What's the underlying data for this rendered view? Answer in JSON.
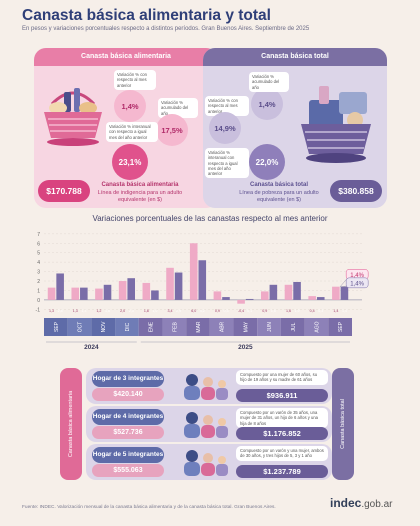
{
  "header": {
    "title": "Canasta básica alimentaria y total",
    "subtitle": "En pesos y variaciones porcentuales respecto a distintos períodos. Gran Buenos Aires. Septiembre de 2025"
  },
  "cba_panel": {
    "heading": "Canasta básica alimentaria",
    "var_monthly_label": "Variación % con respecto al mes anterior",
    "var_monthly": "1,4%",
    "var_yoy_label": "Variación % acumulado del año",
    "var_yoy": "17,5%",
    "var_interannual_label": "Variación % interanual con respecto a igual mes del año anterior",
    "var_interannual": "23,1%",
    "value": "$170.788",
    "line_title": "Canasta básica alimentaria",
    "line_sub": "Línea de indigencia para un adulto equivalente (en $)"
  },
  "cbt_panel": {
    "heading": "Canasta básica total",
    "var_monthly_label": "Variación % con respecto al mes anterior",
    "var_monthly": "1,4%",
    "var_yoy_label": "Variación % acumulado del año",
    "var_yoy": "14,9%",
    "var_interannual_label": "Variación % interanual con respecto a igual mes del año anterior",
    "var_interannual": "22,0%",
    "value": "$380.858",
    "line_title": "Canasta básica total",
    "line_sub": "Línea de pobreza para un adulto equivalente (en $)"
  },
  "chart_data": {
    "type": "bar",
    "title": "Variaciones porcentuales de las canastas respecto al mes anterior",
    "categories": [
      "SEP",
      "OCT",
      "NOV",
      "DIC",
      "ENE",
      "FEB",
      "MAR",
      "ABR",
      "MAY",
      "JUN",
      "JUL",
      "AGO",
      "SEP"
    ],
    "year_groups": [
      {
        "label": "2024",
        "count": 4
      },
      {
        "label": "2025",
        "count": 9
      }
    ],
    "series": [
      {
        "name": "Canasta básica alimentaria",
        "color": "#efaac6",
        "values": [
          1.3,
          1.3,
          1.2,
          2.0,
          1.8,
          3.4,
          6.0,
          0.9,
          -0.4,
          0.9,
          1.6,
          0.4,
          1.4
        ],
        "labels": [
          "1,3",
          "1,3",
          "1,2",
          "2,0",
          "1,8",
          "3,4",
          "6,0",
          "0,9",
          "-0,4",
          "0,9",
          "1,6",
          "0,4",
          "1,4"
        ]
      },
      {
        "name": "Canasta básica total",
        "color": "#7a6da8",
        "values": [
          2.8,
          1.3,
          1.6,
          2.3,
          1.0,
          2.9,
          4.2,
          0.3,
          0.1,
          1.6,
          1.9,
          0.3,
          1.4
        ],
        "labels": [
          "2,8",
          "1,3",
          "1,6",
          "2,3",
          "1,0",
          "2,9",
          "4,2",
          "0,3",
          "0,1",
          "1,6",
          "1,9",
          "0,3",
          "1,4"
        ]
      }
    ],
    "last_callouts": [
      "1,4%",
      "1,4%"
    ],
    "yticks": [
      -1,
      0,
      1,
      2,
      3,
      4,
      5,
      6,
      7
    ],
    "ylim": [
      -1.6,
      7.3
    ]
  },
  "households": {
    "side_left": "Canasta básica alimentaria",
    "side_right": "Canasta básica total",
    "rows": [
      {
        "label": "Hogar de 3 integrantes",
        "cba": "$420.140",
        "composition": "Compuesto por una mujer de 60 años, su hijo de 19 años y su madre de 61 años",
        "cbt": "$936.911"
      },
      {
        "label": "Hogar de 4 integrantes",
        "cba": "$527.736",
        "composition": "Compuesto por un varón de 35 años, una mujer de 31 años, un hijo de 6 años y una hija de 8 años",
        "cbt": "$1.176.852"
      },
      {
        "label": "Hogar de 5 integrantes",
        "cba": "$555.063",
        "composition": "Compuesto por un varón y una mujer, ambos de 30 años, y tres hijos de 5, 3 y 1 año",
        "cbt": "$1.237.789"
      }
    ]
  },
  "footer": {
    "source": "Fuente: INDEC. Valorización mensual de la canasta básica alimentaria y de la canasta básica total. Gran Buenos Aires.",
    "logo_main": "indec",
    "logo_domain": ".gob.ar"
  },
  "colors": {
    "pink_strong": "#e0528c",
    "pink_light": "#f5b8cf",
    "lavender_strong": "#7b6fa3",
    "lavender_light": "#c9bfdd",
    "title_blue": "#2f3f78"
  },
  "icons": [
    "basket-icon",
    "family-icon",
    "shopping-bag-icon"
  ]
}
